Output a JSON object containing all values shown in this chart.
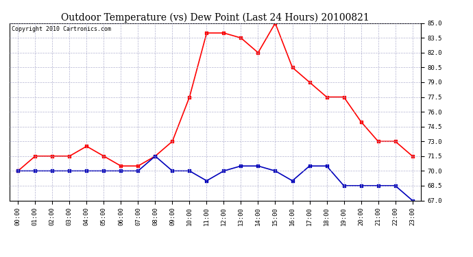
{
  "title": "Outdoor Temperature (vs) Dew Point (Last 24 Hours) 20100821",
  "copyright": "Copyright 2010 Cartronics.com",
  "hours": [
    "00:00",
    "01:00",
    "02:00",
    "03:00",
    "04:00",
    "05:00",
    "06:00",
    "07:00",
    "08:00",
    "09:00",
    "10:00",
    "11:00",
    "12:00",
    "13:00",
    "14:00",
    "15:00",
    "16:00",
    "17:00",
    "18:00",
    "19:00",
    "20:00",
    "21:00",
    "22:00",
    "23:00"
  ],
  "temp": [
    70.0,
    71.5,
    71.5,
    71.5,
    72.5,
    71.5,
    70.5,
    70.5,
    71.5,
    73.0,
    77.5,
    84.0,
    84.0,
    83.5,
    82.0,
    85.0,
    80.5,
    79.0,
    77.5,
    77.5,
    75.0,
    73.0,
    73.0,
    71.5
  ],
  "dew": [
    70.0,
    70.0,
    70.0,
    70.0,
    70.0,
    70.0,
    70.0,
    70.0,
    71.5,
    70.0,
    70.0,
    69.0,
    70.0,
    70.5,
    70.5,
    70.0,
    69.0,
    70.5,
    70.5,
    68.5,
    68.5,
    68.5,
    68.5,
    67.0
  ],
  "temp_color": "#ff0000",
  "dew_color": "#0000bb",
  "ylim_min": 67.0,
  "ylim_max": 85.0,
  "yticks": [
    67.0,
    68.5,
    70.0,
    71.5,
    73.0,
    74.5,
    76.0,
    77.5,
    79.0,
    80.5,
    82.0,
    83.5,
    85.0
  ],
  "bg_color": "#ffffff",
  "grid_color": "#aaaacc",
  "marker": "s",
  "marker_size": 2.5,
  "line_width": 1.2,
  "title_fontsize": 10,
  "tick_fontsize": 6.5,
  "copyright_fontsize": 6
}
